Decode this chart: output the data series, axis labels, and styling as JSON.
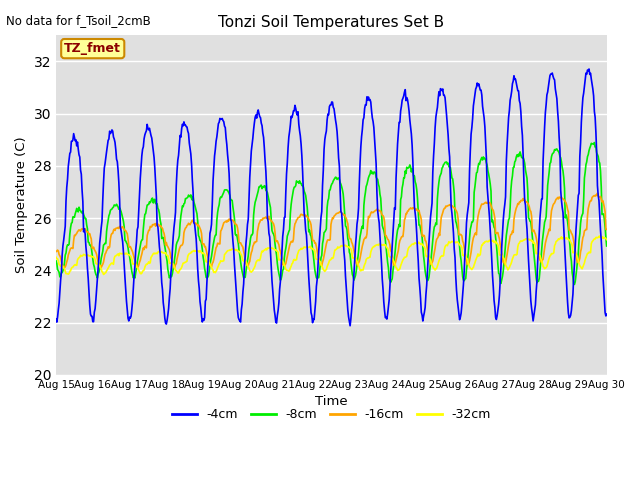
{
  "title": "Tonzi Soil Temperatures Set B",
  "xlabel": "Time",
  "ylabel": "Soil Temperature (C)",
  "note": "No data for f_Tsoil_2cmB",
  "legend_label": "TZ_fmet",
  "ylim": [
    20,
    33
  ],
  "yticks": [
    20,
    22,
    24,
    26,
    28,
    30,
    32
  ],
  "x_labels": [
    "Aug 15",
    "Aug 16",
    "Aug 17",
    "Aug 18",
    "Aug 19",
    "Aug 20",
    "Aug 21",
    "Aug 22",
    "Aug 23",
    "Aug 24",
    "Aug 25",
    "Aug 26",
    "Aug 27",
    "Aug 28",
    "Aug 29",
    "Aug 30"
  ],
  "colors": {
    "4cm": "#0000ff",
    "8cm": "#00ee00",
    "16cm": "#ffa500",
    "32cm": "#ffff00"
  },
  "labels": {
    "4cm": "-4cm",
    "8cm": "-8cm",
    "16cm": "-16cm",
    "32cm": "-32cm"
  },
  "bg_color": "#e0e0e0",
  "fig_bg_color": "#ffffff",
  "linewidth": 1.2
}
